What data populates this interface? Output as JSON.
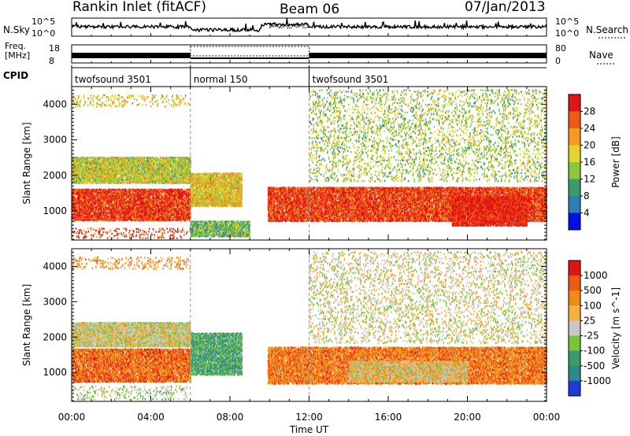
{
  "header": {
    "station": "Rankin Inlet (fitACF)",
    "beam": "Beam 06",
    "date": "07/Jan/2013"
  },
  "status_panels": {
    "nsky_label": "N.Sky",
    "nsearch_label": "N.Search",
    "freq_label_1": "Freq.",
    "freq_label_2": "[MHz]",
    "nave_label": "Nave",
    "cpid_label": "CPID",
    "noise_ticks": [
      "10^5",
      "10^0"
    ],
    "freq_ticks": [
      "18",
      "8"
    ],
    "nave_ticks": [
      "80",
      "0"
    ],
    "cpid_segments": [
      {
        "label": "twofsound 3501",
        "start_h": 0,
        "end_h": 6
      },
      {
        "label": "normal 150",
        "start_h": 6,
        "end_h": 12
      },
      {
        "label": "twofsound 3501",
        "start_h": 12,
        "end_h": 24
      }
    ]
  },
  "x_axis": {
    "label": "Time UT",
    "ticks": [
      "00:00",
      "04:00",
      "08:00",
      "12:00",
      "16:00",
      "20:00",
      "00:00"
    ]
  },
  "chart_data": [
    {
      "type": "heatmap",
      "ylabel": "Slant Range [km]",
      "x_unit": "hours UT",
      "xlim": [
        0,
        24
      ],
      "ylim": [
        180,
        4500
      ],
      "y_ticks": [
        1000,
        2000,
        3000,
        4000
      ],
      "colorbar_label": "Power [dB]",
      "colorbar_ticks": [
        "4",
        "8",
        "12",
        "16",
        "20",
        "24",
        "28"
      ],
      "colorbar_colors": [
        "#0010e8",
        "#2a7fb6",
        "#3c9a6c",
        "#8cc63f",
        "#e6d22a",
        "#f49a20",
        "#f05a14",
        "#e01414"
      ],
      "echo_regions": [
        {
          "x": [
            0,
            6
          ],
          "y": [
            700,
            1600
          ],
          "level": 6.6
        },
        {
          "x": [
            6,
            8.6
          ],
          "y": [
            1100,
            2050
          ],
          "level": 4.2
        },
        {
          "x": [
            9.9,
            24
          ],
          "y": [
            680,
            1650
          ],
          "level": 6.5
        },
        {
          "x": [
            19.2,
            23
          ],
          "y": [
            550,
            1400
          ],
          "level": 7
        },
        {
          "x": [
            0,
            6
          ],
          "y": [
            1750,
            2500
          ],
          "level": 3.6
        },
        {
          "x": [
            0,
            6
          ],
          "y": [
            3900,
            4250
          ],
          "level": 4.2
        },
        {
          "x": [
            0,
            6
          ],
          "y": [
            200,
            500
          ],
          "level": 6.2
        },
        {
          "x": [
            6,
            9
          ],
          "y": [
            250,
            700
          ],
          "level": 2.6
        },
        {
          "x": [
            12,
            24
          ],
          "y": [
            1800,
            4400
          ],
          "level": 3.3
        }
      ]
    },
    {
      "type": "heatmap",
      "ylabel": "Slant Range [km]",
      "x_unit": "hours UT",
      "xlim": [
        0,
        24
      ],
      "ylim": [
        180,
        4500
      ],
      "y_ticks": [
        1000,
        2000,
        3000,
        4000
      ],
      "colorbar_label": "Velocity [m s^-1]",
      "colorbar_ticks": [
        "1000",
        "500",
        "100",
        "25",
        "-25",
        "-100",
        "-500",
        "-1000"
      ],
      "colorbar_colors": [
        "#1c3cd2",
        "#2c8a8e",
        "#3c9a6c",
        "#74c63a",
        "#c8c8c8",
        "#f5b041",
        "#f18a14",
        "#ee5a10",
        "#e01414"
      ],
      "echo_regions": [
        {
          "x": [
            0,
            6
          ],
          "y": [
            700,
            1650
          ],
          "level": 6.6
        },
        {
          "x": [
            6,
            8.6
          ],
          "y": [
            900,
            2100
          ],
          "level": 2.2
        },
        {
          "x": [
            9.9,
            24
          ],
          "y": [
            650,
            1700
          ],
          "level": 6.3
        },
        {
          "x": [
            14,
            20
          ],
          "y": [
            700,
            1300
          ],
          "level": 4.6
        },
        {
          "x": [
            0,
            6
          ],
          "y": [
            1700,
            2400
          ],
          "level": 4.2
        },
        {
          "x": [
            0,
            6
          ],
          "y": [
            3900,
            4250
          ],
          "level": 5.6
        },
        {
          "x": [
            0,
            6
          ],
          "y": [
            200,
            600
          ],
          "level": 3.6
        },
        {
          "x": [
            12,
            24
          ],
          "y": [
            1800,
            4400
          ],
          "level": 4.2
        }
      ]
    }
  ]
}
